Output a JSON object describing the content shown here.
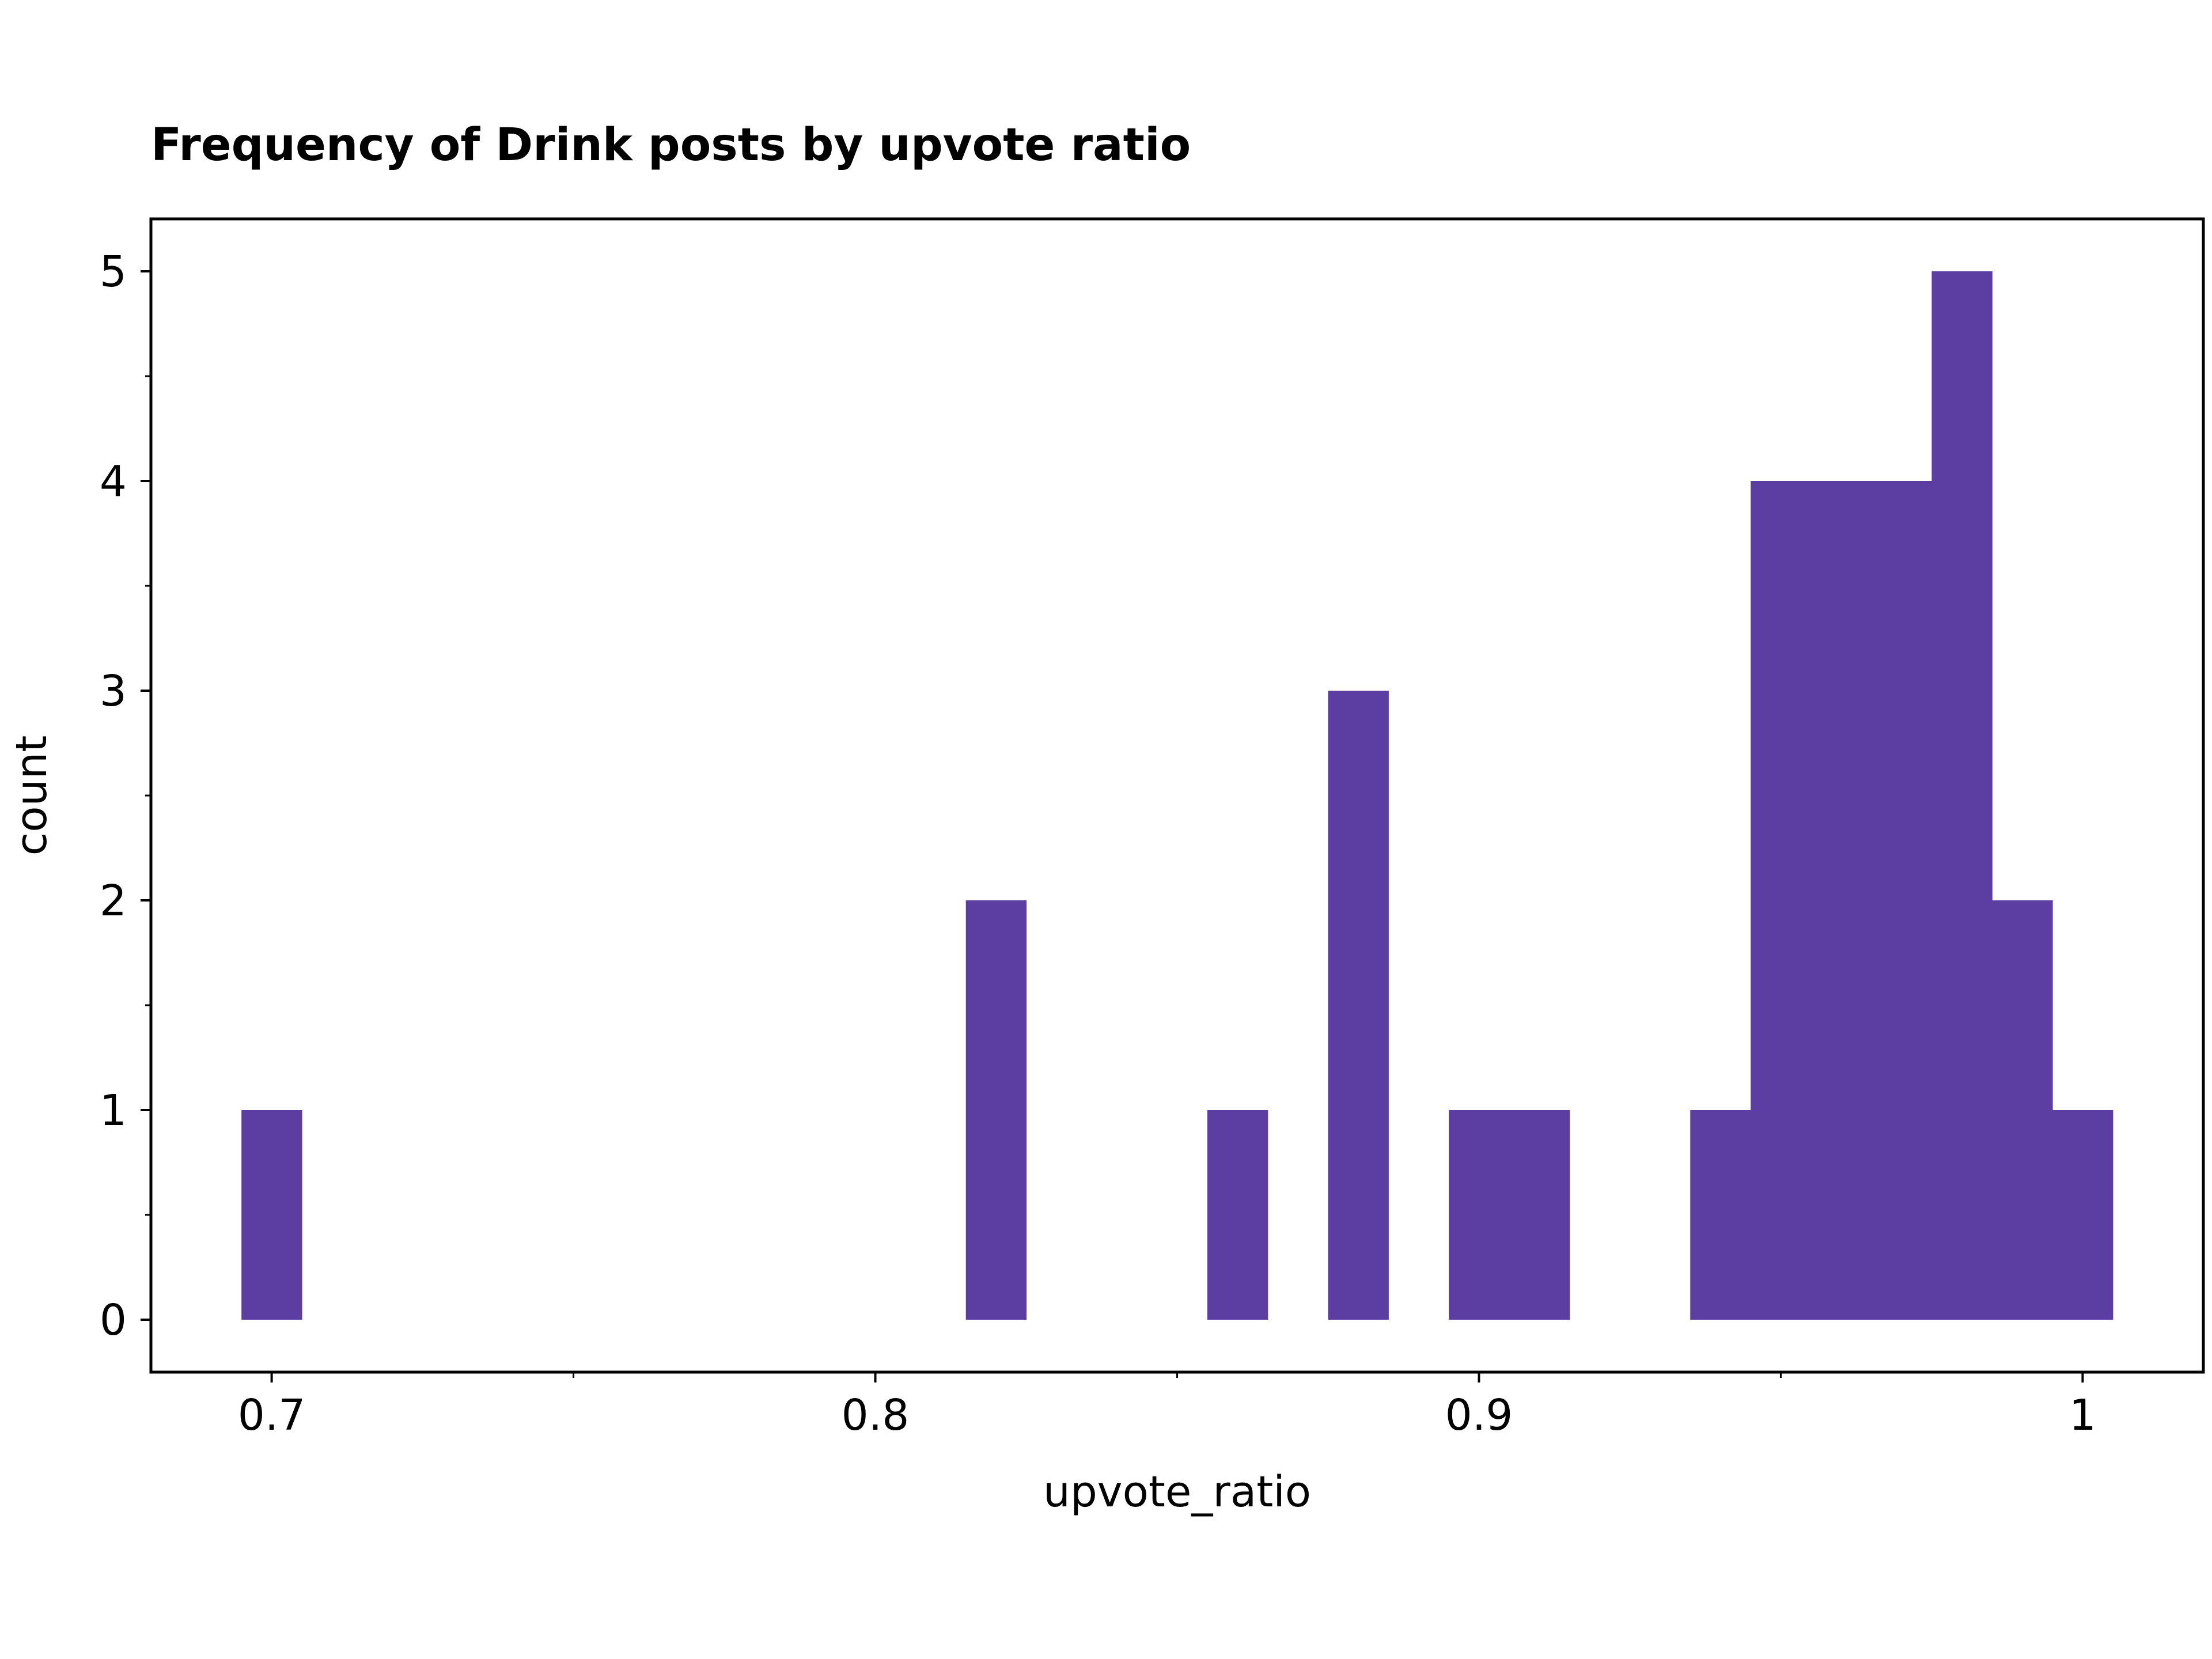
{
  "chart_data": {
    "type": "bar",
    "title": "Frequency of Drink posts by upvote ratio",
    "xlabel": "upvote_ratio",
    "ylabel": "count",
    "bar_color": "#5c3ea3",
    "xlim": [
      0.68,
      1.02
    ],
    "ylim": [
      -0.25,
      5.25
    ],
    "bin_width": 0.01,
    "x_ticks": [
      {
        "value": 0.7,
        "label": "0.7"
      },
      {
        "value": 0.8,
        "label": "0.8"
      },
      {
        "value": 0.9,
        "label": "0.9"
      },
      {
        "value": 1.0,
        "label": "1"
      }
    ],
    "x_minor_ticks": [
      0.75,
      0.85,
      0.95
    ],
    "y_ticks": [
      {
        "value": 0,
        "label": "0"
      },
      {
        "value": 1,
        "label": "1"
      },
      {
        "value": 2,
        "label": "2"
      },
      {
        "value": 3,
        "label": "3"
      },
      {
        "value": 4,
        "label": "4"
      },
      {
        "value": 5,
        "label": "5"
      }
    ],
    "y_minor_ticks": [
      0.5,
      1.5,
      2.5,
      3.5,
      4.5
    ],
    "bins": [
      {
        "x": 0.7,
        "count": 1
      },
      {
        "x": 0.82,
        "count": 2
      },
      {
        "x": 0.86,
        "count": 1
      },
      {
        "x": 0.88,
        "count": 3
      },
      {
        "x": 0.9,
        "count": 1
      },
      {
        "x": 0.91,
        "count": 1
      },
      {
        "x": 0.94,
        "count": 1
      },
      {
        "x": 0.95,
        "count": 4
      },
      {
        "x": 0.96,
        "count": 4
      },
      {
        "x": 0.97,
        "count": 4
      },
      {
        "x": 0.98,
        "count": 5
      },
      {
        "x": 0.99,
        "count": 2
      },
      {
        "x": 1.0,
        "count": 1
      }
    ]
  }
}
